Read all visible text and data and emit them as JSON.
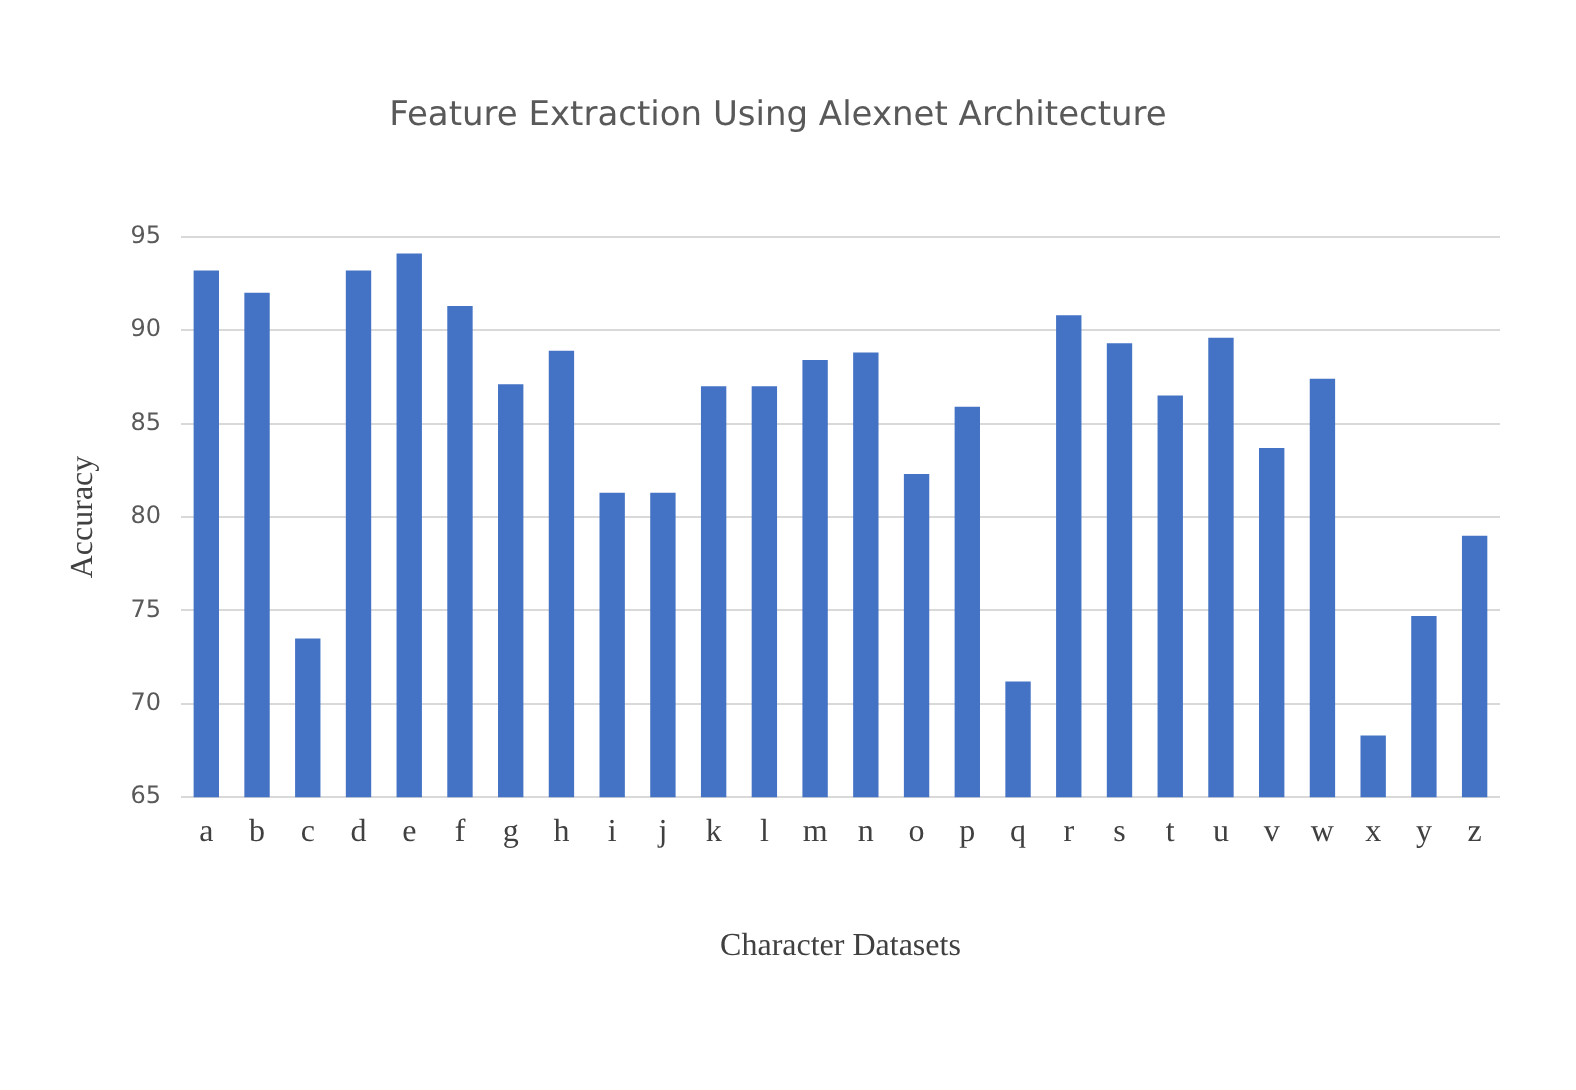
{
  "chart_data": {
    "type": "bar",
    "title": "Feature Extraction Using Alexnet Architecture",
    "xlabel": "Character Datasets",
    "ylabel": "Accuracy",
    "categories": [
      "a",
      "b",
      "c",
      "d",
      "e",
      "f",
      "g",
      "h",
      "i",
      "j",
      "k",
      "l",
      "m",
      "n",
      "o",
      "p",
      "q",
      "r",
      "s",
      "t",
      "u",
      "v",
      "w",
      "x",
      "y",
      "z"
    ],
    "values": [
      93.2,
      92.0,
      73.5,
      93.2,
      94.1,
      91.3,
      87.1,
      88.9,
      81.3,
      81.3,
      87.0,
      87.0,
      88.4,
      88.8,
      82.3,
      85.9,
      71.2,
      90.8,
      89.3,
      86.5,
      89.6,
      83.7,
      87.4,
      68.3,
      74.7,
      79.0
    ],
    "color": "#4472c4",
    "ylim": [
      65,
      95
    ],
    "yticks": [
      65,
      70,
      75,
      80,
      85,
      90,
      95
    ],
    "grid": "y",
    "legend": false
  }
}
